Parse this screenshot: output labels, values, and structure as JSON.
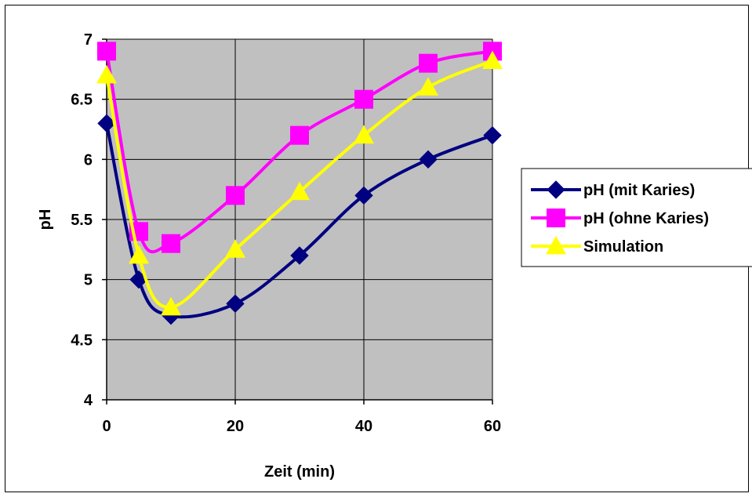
{
  "chart_data": {
    "type": "line",
    "xlabel": "Zeit (min)",
    "ylabel": "pH",
    "xlim": [
      0,
      60
    ],
    "ylim": [
      4,
      7
    ],
    "xticks": [
      0,
      20,
      40,
      60
    ],
    "yticks": [
      4,
      4.5,
      5,
      5.5,
      6,
      6.5,
      7
    ],
    "grid": true,
    "legend_position": "right",
    "plot_background": "#c0c0c0",
    "series": [
      {
        "name": "pH (mit Karies)",
        "color": "#000080",
        "marker": "diamond",
        "x": [
          0,
          5,
          10,
          20,
          30,
          40,
          50,
          60
        ],
        "y": [
          6.3,
          5.0,
          4.7,
          4.8,
          5.2,
          5.7,
          6.0,
          6.2
        ]
      },
      {
        "name": "pH (ohne Karies)",
        "color": "#ff00ff",
        "marker": "square",
        "x": [
          0,
          5,
          10,
          20,
          30,
          40,
          50,
          60
        ],
        "y": [
          6.9,
          5.4,
          5.3,
          5.7,
          6.2,
          6.5,
          6.8,
          6.9
        ]
      },
      {
        "name": "Simulation",
        "color": "#ffff00",
        "marker": "triangle",
        "x": [
          0,
          5,
          10,
          20,
          30,
          40,
          50,
          60
        ],
        "y": [
          6.7,
          5.2,
          4.77,
          5.25,
          5.73,
          6.2,
          6.6,
          6.82
        ]
      }
    ]
  }
}
